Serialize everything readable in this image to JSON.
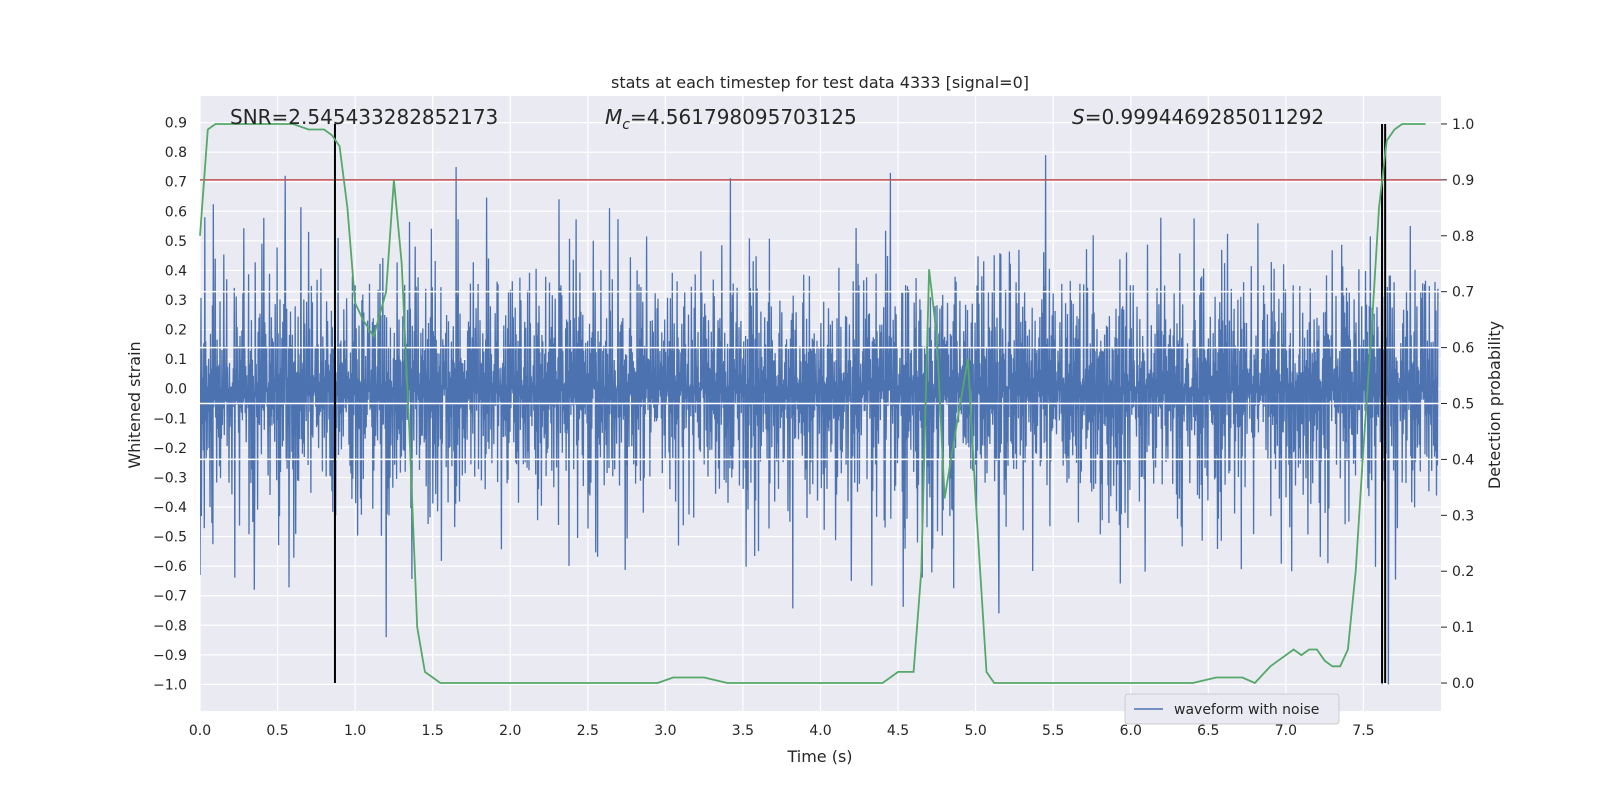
{
  "colors": {
    "background": "#eaeaf2",
    "grid": "#ffffff",
    "waveform": "#4c72b0",
    "probability": "#55a868",
    "threshold": "#c44e52",
    "marker": "#000000"
  },
  "chart_data": {
    "type": "line",
    "title": "stats at each timestep for test data 4333 [signal=0]",
    "xlabel": "Time (s)",
    "ylabel_left": "Whitened strain",
    "ylabel_right": "Detection probability",
    "xlim": [
      0.0,
      8.0
    ],
    "ylim_left": [
      -1.09,
      0.99
    ],
    "ylim_right": [
      -0.05,
      1.05
    ],
    "x_ticks": [
      "0.0",
      "0.5",
      "1.0",
      "1.5",
      "2.0",
      "2.5",
      "3.0",
      "3.5",
      "4.0",
      "4.5",
      "5.0",
      "5.5",
      "6.0",
      "6.5",
      "7.0",
      "7.5"
    ],
    "y_left_ticks": [
      "0.9",
      "0.8",
      "0.7",
      "0.6",
      "0.5",
      "0.4",
      "0.3",
      "0.2",
      "0.1",
      "0.0",
      "-0.1",
      "-0.2",
      "-0.3",
      "-0.4",
      "-0.5",
      "-0.6",
      "-0.7",
      "-0.8",
      "-0.9",
      "-1.0"
    ],
    "y_right_ticks": [
      "1.0",
      "0.9",
      "0.8",
      "0.7",
      "0.6",
      "0.5",
      "0.4",
      "0.3",
      "0.2",
      "0.1",
      "0.0"
    ],
    "annotations": {
      "snr": "SNR=2.545433282852173",
      "mc_symbol": "M",
      "mc_sub": "c",
      "mc_value": "=4.561798095703125",
      "s_symbol": "S",
      "s_value": "=0.9994469285011292"
    },
    "legend": {
      "label": "waveform with noise",
      "position": "lower-right"
    },
    "threshold": 0.9,
    "vertical_markers": [
      0.87,
      7.62,
      7.64
    ],
    "series": [
      {
        "name": "waveform with noise",
        "axis": "left",
        "description": "noisy whitened strain, mostly within ±0.35",
        "typical_amplitude": 0.3,
        "peaks": [
          {
            "x": 0.0,
            "value": -0.63
          },
          {
            "x": 0.35,
            "value": -0.68
          },
          {
            "x": 0.55,
            "value": 0.72
          },
          {
            "x": 0.87,
            "value": -0.6
          },
          {
            "x": 1.2,
            "value": -0.84
          },
          {
            "x": 1.65,
            "value": 0.75
          },
          {
            "x": 4.2,
            "value": -0.65
          },
          {
            "x": 4.45,
            "value": 0.73
          },
          {
            "x": 5.15,
            "value": -0.76
          },
          {
            "x": 5.45,
            "value": 0.79
          },
          {
            "x": 7.62,
            "value": -1.0
          },
          {
            "x": 7.66,
            "value": -1.0
          }
        ]
      },
      {
        "name": "detection probability",
        "axis": "right",
        "x": [
          0.0,
          0.05,
          0.1,
          0.2,
          0.3,
          0.4,
          0.5,
          0.6,
          0.7,
          0.8,
          0.85,
          0.9,
          0.95,
          1.0,
          1.05,
          1.12,
          1.2,
          1.25,
          1.3,
          1.35,
          1.4,
          1.45,
          1.55,
          1.65,
          1.8,
          2.0,
          2.2,
          2.4,
          2.6,
          2.8,
          2.95,
          3.05,
          3.15,
          3.25,
          3.4,
          3.6,
          3.8,
          4.0,
          4.2,
          4.4,
          4.5,
          4.6,
          4.65,
          4.7,
          4.75,
          4.8,
          4.87,
          4.95,
          5.0,
          5.07,
          5.12,
          5.2,
          5.4,
          5.6,
          5.8,
          6.0,
          6.2,
          6.4,
          6.55,
          6.65,
          6.72,
          6.8,
          6.9,
          6.95,
          7.0,
          7.05,
          7.1,
          7.15,
          7.2,
          7.25,
          7.3,
          7.35,
          7.4,
          7.45,
          7.5,
          7.55,
          7.6,
          7.65,
          7.7,
          7.75,
          7.8,
          7.9
        ],
        "values": [
          0.8,
          0.99,
          1.0,
          1.0,
          1.0,
          1.0,
          1.0,
          1.0,
          0.99,
          0.99,
          0.98,
          0.96,
          0.85,
          0.68,
          0.65,
          0.62,
          0.7,
          0.9,
          0.75,
          0.45,
          0.1,
          0.02,
          0.0,
          0.0,
          0.0,
          0.0,
          0.0,
          0.0,
          0.0,
          0.0,
          0.0,
          0.01,
          0.01,
          0.01,
          0.0,
          0.0,
          0.0,
          0.0,
          0.0,
          0.0,
          0.02,
          0.02,
          0.2,
          0.74,
          0.62,
          0.33,
          0.45,
          0.58,
          0.33,
          0.02,
          0.0,
          0.0,
          0.0,
          0.0,
          0.0,
          0.0,
          0.0,
          0.0,
          0.01,
          0.01,
          0.01,
          0.0,
          0.03,
          0.04,
          0.05,
          0.06,
          0.05,
          0.06,
          0.06,
          0.04,
          0.03,
          0.03,
          0.06,
          0.2,
          0.42,
          0.62,
          0.85,
          0.97,
          0.99,
          1.0,
          1.0,
          1.0
        ]
      }
    ]
  }
}
